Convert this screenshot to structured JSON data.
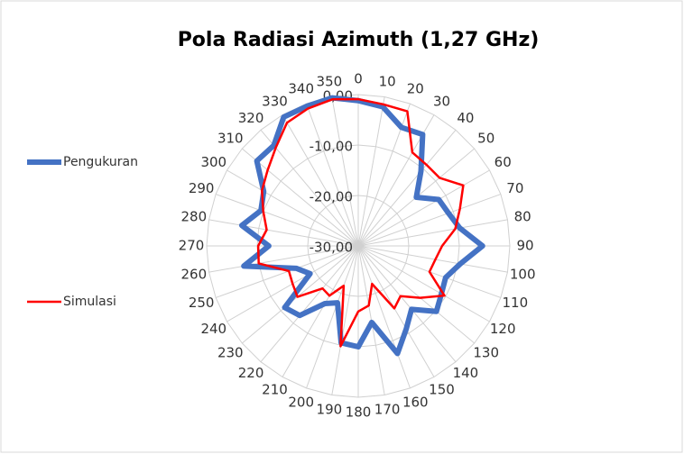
{
  "chart_data": {
    "type": "radar",
    "title": "Pola Radiasi Azimuth (1,27 GHz)",
    "categories": [
      "0",
      "10",
      "20",
      "30",
      "40",
      "50",
      "60",
      "70",
      "80",
      "90",
      "100",
      "110",
      "120",
      "130",
      "140",
      "150",
      "160",
      "170",
      "180",
      "190",
      "200",
      "210",
      "220",
      "230",
      "240",
      "250",
      "260",
      "270",
      "280",
      "290",
      "300",
      "310",
      "320",
      "330",
      "340",
      "350"
    ],
    "ylim": [
      -30,
      0
    ],
    "yticks": [
      {
        "value": -30,
        "label": "-30,00"
      },
      {
        "value": -20,
        "label": "-20,00"
      },
      {
        "value": -10,
        "label": "-10,00"
      },
      {
        "value": 0,
        "label": "0,00"
      }
    ],
    "grid": true,
    "legend": "left",
    "series": [
      {
        "name": "Pengukuran",
        "color": "#4472c4",
        "values": [
          -1.2,
          -2,
          -5,
          -4.5,
          -10.7,
          -15,
          -11.6,
          -11,
          -9.6,
          -5.4,
          -9.5,
          -11.6,
          -11,
          -9.8,
          -13.6,
          -11,
          -7.3,
          -14.6,
          -10,
          -10.5,
          -18,
          -16.8,
          -12,
          -11,
          -19,
          -17,
          -7,
          -12.3,
          -6.6,
          -9.5,
          -8.4,
          -3.8,
          -4,
          -0.5,
          -0.5,
          -0.2
        ]
      },
      {
        "name": "Simulasi",
        "color": "#ff0000",
        "values": [
          -0.9,
          -1.5,
          -1.6,
          -8.6,
          -9,
          -9,
          -6,
          -8.6,
          -10.5,
          -13.4,
          -14.5,
          -15,
          -10.3,
          -14,
          -17,
          -15.7,
          -22,
          -18,
          -17,
          -9.8,
          -21.6,
          -18.6,
          -19,
          -14.3,
          -15,
          -15.4,
          -10,
          -10.2,
          -11.6,
          -10,
          -8,
          -6.6,
          -4.6,
          -1.8,
          -1,
          -0.5
        ]
      }
    ]
  }
}
